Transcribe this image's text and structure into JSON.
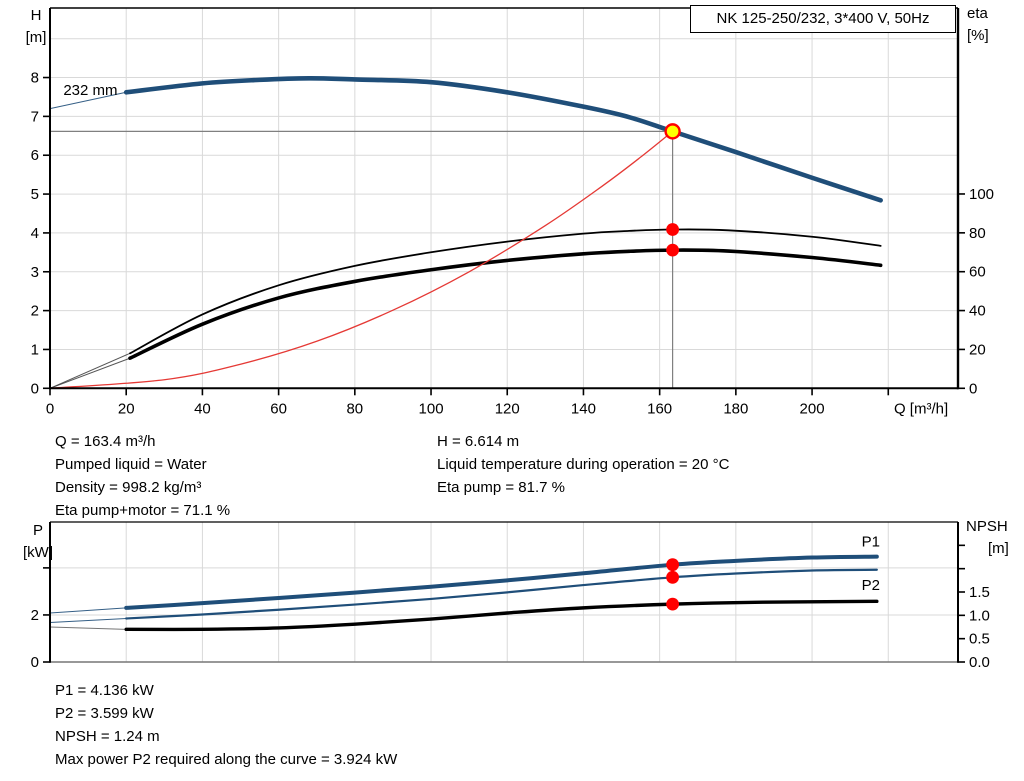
{
  "header": {
    "title_box": "NK 125-250/232, 3*400 V, 50Hz"
  },
  "colors": {
    "curve_blue": "#1f4e79",
    "curve_black": "#000000",
    "system_curve_red": "#e53935",
    "marker_red": "#ff0000",
    "marker_yellow": "#ffff00",
    "grid": "#d9d9d9",
    "ref_line_gray": "#808080",
    "label_blue": "#1f5c99"
  },
  "info_top": {
    "left": [
      "Q = 163.4 m³/h",
      "Pumped liquid = Water",
      "Density = 998.2 kg/m³",
      "Eta pump+motor = 71.1 %"
    ],
    "right": [
      "H = 6.614 m",
      "Liquid temperature during operation = 20 °C",
      "Eta pump = 81.7 %"
    ]
  },
  "info_bottom": [
    "P1 = 4.136 kW",
    "P2 = 3.599 kW",
    "NPSH = 1.24 m",
    "Max power P2 required along the curve = 3.924 kW"
  ],
  "chart_data": [
    {
      "type": "line",
      "title": "NK 125-250/232, 3*400 V, 50Hz",
      "x_axis": {
        "title": "Q [m³/h]",
        "title_q": 228.6,
        "min": 0,
        "max": 238.3,
        "ticks": [
          {
            "v": 0,
            "label": "0"
          },
          {
            "v": 20,
            "label": "20"
          },
          {
            "v": 40,
            "label": "40"
          },
          {
            "v": 60,
            "label": "60"
          },
          {
            "v": 80,
            "label": "80"
          },
          {
            "v": 100,
            "label": "100"
          },
          {
            "v": 120,
            "label": "120"
          },
          {
            "v": 140,
            "label": "140"
          },
          {
            "v": 160,
            "label": "160"
          },
          {
            "v": 180,
            "label": "180"
          },
          {
            "v": 200,
            "label": "200"
          },
          {
            "v": 220,
            "label": ""
          }
        ]
      },
      "y_left": {
        "labels": [
          "H",
          "[m]"
        ],
        "min": 0,
        "max": 9.79,
        "ticks": [
          {
            "v": 0,
            "label": "0"
          },
          {
            "v": 1,
            "label": "1"
          },
          {
            "v": 2,
            "label": "2"
          },
          {
            "v": 3,
            "label": "3"
          },
          {
            "v": 4,
            "label": "4"
          },
          {
            "v": 5,
            "label": "5"
          },
          {
            "v": 6,
            "label": "6"
          },
          {
            "v": 7,
            "label": "7"
          },
          {
            "v": 8,
            "label": "8"
          }
        ]
      },
      "y_right": {
        "labels": [
          "eta",
          "[%]"
        ],
        "min": 0,
        "max": 195.7,
        "ticks": [
          {
            "v": 0,
            "label": "0"
          },
          {
            "v": 20,
            "label": "20"
          },
          {
            "v": 40,
            "label": "40"
          },
          {
            "v": 60,
            "label": "60"
          },
          {
            "v": 80,
            "label": "80"
          },
          {
            "v": 100,
            "label": "100"
          }
        ]
      },
      "gridlines": {
        "x": [
          20,
          40,
          60,
          80,
          100,
          120,
          140,
          160,
          180,
          200,
          220
        ],
        "y": [
          1,
          2,
          3,
          4,
          5,
          6,
          7,
          8,
          9
        ]
      },
      "series": [
        {
          "name": "head-curve",
          "axis": "left",
          "color": "#1f4e79",
          "width": 4.6,
          "lead_color": "#1f4e79",
          "lead": [
            [
              0,
              7.2
            ],
            [
              20,
              7.62
            ]
          ],
          "points": [
            [
              20,
              7.62
            ],
            [
              40,
              7.85
            ],
            [
              55,
              7.94
            ],
            [
              68,
              7.98
            ],
            [
              80,
              7.95
            ],
            [
              100,
              7.88
            ],
            [
              120,
              7.62
            ],
            [
              140,
              7.25
            ],
            [
              152,
              6.98
            ],
            [
              163.4,
              6.614
            ],
            [
              180,
              6.08
            ],
            [
              200,
              5.42
            ],
            [
              218,
              4.84
            ]
          ]
        },
        {
          "name": "eta-pump-curve",
          "axis": "right",
          "color": "#000000",
          "width": 1.8,
          "lead_color": "#444444",
          "lead": [
            [
              0,
              0
            ],
            [
              21,
              18
            ]
          ],
          "points": [
            [
              21,
              18
            ],
            [
              40,
              38
            ],
            [
              60,
              53
            ],
            [
              80,
              63
            ],
            [
              100,
              70
            ],
            [
              120,
              75.5
            ],
            [
              140,
              79.6
            ],
            [
              152,
              81
            ],
            [
              163.4,
              81.7
            ],
            [
              178,
              81.3
            ],
            [
              200,
              78
            ],
            [
              218,
              73.3
            ]
          ]
        },
        {
          "name": "eta-pump-motor-curve",
          "axis": "right",
          "color": "#000000",
          "width": 3.6,
          "lead_color": "#444444",
          "lead": [
            [
              0,
              0
            ],
            [
              21,
              15.5
            ]
          ],
          "points": [
            [
              21,
              15.5
            ],
            [
              40,
              33
            ],
            [
              60,
              46.5
            ],
            [
              80,
              55
            ],
            [
              100,
              61
            ],
            [
              120,
              65.8
            ],
            [
              140,
              69.2
            ],
            [
              152,
              70.5
            ],
            [
              163.4,
              71.1
            ],
            [
              178,
              70.6
            ],
            [
              200,
              67.3
            ],
            [
              218,
              63.3
            ]
          ]
        },
        {
          "name": "system-parabola",
          "axis": "left",
          "color": "#e53935",
          "width": 1.3,
          "points": [
            [
              0,
              0
            ],
            [
              30,
              0.22
            ],
            [
              50,
              0.62
            ],
            [
              70,
              1.21
            ],
            [
              90,
              2.01
            ],
            [
              110,
              3.0
            ],
            [
              130,
              4.19
            ],
            [
              145,
              5.21
            ],
            [
              155,
              5.95
            ],
            [
              163.4,
              6.614
            ]
          ]
        }
      ],
      "ref_lines": [
        {
          "type": "h",
          "y": 6.614,
          "x1": 0,
          "x2": 163.4
        },
        {
          "type": "v",
          "x": 163.4,
          "y1": 0,
          "y2": 6.614
        }
      ],
      "markers": [
        {
          "x": 163.4,
          "y": 6.614,
          "axis": "left",
          "style": "duty",
          "name": "duty-point-marker"
        },
        {
          "x": 163.4,
          "y": 81.7,
          "axis": "right",
          "style": "dot",
          "name": "eta-pump-marker"
        },
        {
          "x": 163.4,
          "y": 71.1,
          "axis": "right",
          "style": "dot",
          "name": "eta-pump-motor-marker"
        }
      ],
      "curve_labels": [
        {
          "text": "232 mm",
          "x": 3.5,
          "y": 7.55,
          "axis": "left",
          "color": "#000000"
        }
      ]
    },
    {
      "type": "line",
      "title": "",
      "x_axis": {
        "title": "",
        "title_q": 0,
        "min": 0,
        "max": 238.3,
        "ticks": []
      },
      "y_left": {
        "labels": [
          "P",
          "[kW]"
        ],
        "min": 0,
        "max": 5.95,
        "ticks": [
          {
            "v": 0,
            "label": "0"
          },
          {
            "v": 2,
            "label": "2"
          },
          {
            "v": 4,
            "label": ""
          }
        ]
      },
      "y_right": {
        "labels": [
          "NPSH",
          "[m]"
        ],
        "min": 0,
        "max": 3.0,
        "ticks": [
          {
            "v": 0,
            "label": "0.0"
          },
          {
            "v": 0.5,
            "label": "0.5"
          },
          {
            "v": 1,
            "label": "1.0"
          },
          {
            "v": 1.5,
            "label": "1.5"
          },
          {
            "v": 2,
            "label": ""
          },
          {
            "v": 2.5,
            "label": ""
          }
        ]
      },
      "gridlines": {
        "x": [
          20,
          40,
          60,
          80,
          100,
          120,
          140,
          160,
          180,
          200,
          220
        ],
        "y": [
          2,
          4
        ]
      },
      "series": [
        {
          "name": "p1-curve",
          "axis": "left",
          "color": "#1f4e79",
          "width": 4,
          "lead_color": "#1f4e79",
          "lead": [
            [
              0,
              2.08
            ],
            [
              20,
              2.3
            ]
          ],
          "points": [
            [
              20,
              2.3
            ],
            [
              40,
              2.5
            ],
            [
              60,
              2.72
            ],
            [
              80,
              2.95
            ],
            [
              100,
              3.2
            ],
            [
              120,
              3.47
            ],
            [
              140,
              3.77
            ],
            [
              163.4,
              4.136
            ],
            [
              180,
              4.3
            ],
            [
              200,
              4.44
            ],
            [
              217,
              4.48
            ]
          ]
        },
        {
          "name": "p2-curve",
          "axis": "left",
          "color": "#1f4e79",
          "width": 2.2,
          "lead_color": "#1f4e79",
          "lead": [
            [
              0,
              1.68
            ],
            [
              20,
              1.85
            ]
          ],
          "points": [
            [
              20,
              1.85
            ],
            [
              40,
              2.02
            ],
            [
              60,
              2.22
            ],
            [
              80,
              2.44
            ],
            [
              100,
              2.68
            ],
            [
              120,
              2.96
            ],
            [
              140,
              3.27
            ],
            [
              163.4,
              3.599
            ],
            [
              180,
              3.76
            ],
            [
              200,
              3.89
            ],
            [
              217,
              3.92
            ]
          ]
        },
        {
          "name": "npsh-curve",
          "axis": "right",
          "color": "#000000",
          "width": 3.4,
          "lead_color": "#666666",
          "lead": [
            [
              0,
              0.75
            ],
            [
              20,
              0.7
            ]
          ],
          "points": [
            [
              20,
              0.7
            ],
            [
              40,
              0.7
            ],
            [
              60,
              0.73
            ],
            [
              80,
              0.81
            ],
            [
              100,
              0.92
            ],
            [
              120,
              1.05
            ],
            [
              140,
              1.16
            ],
            [
              163.4,
              1.24
            ],
            [
              185,
              1.28
            ],
            [
              217,
              1.3
            ]
          ]
        }
      ],
      "ref_lines": [],
      "markers": [
        {
          "x": 163.4,
          "y": 4.136,
          "axis": "left",
          "style": "dot",
          "name": "p1-marker"
        },
        {
          "x": 163.4,
          "y": 3.599,
          "axis": "left",
          "style": "dot",
          "name": "p2-marker"
        },
        {
          "x": 163.4,
          "y": 1.24,
          "axis": "right",
          "style": "dot",
          "name": "npsh-marker"
        }
      ],
      "curve_labels": [
        {
          "text": "P1",
          "x": 213,
          "y": 4.9,
          "axis": "left",
          "color": "#1f5c99"
        },
        {
          "text": "P2",
          "x": 213,
          "y": 3.05,
          "axis": "left",
          "color": "#1f5c99"
        }
      ]
    }
  ]
}
